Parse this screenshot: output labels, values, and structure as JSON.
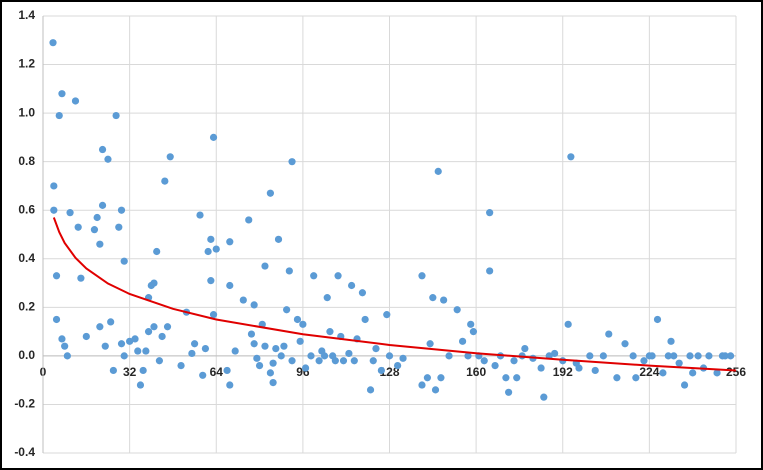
{
  "chart_data": {
    "type": "scatter",
    "xlim": [
      0,
      256
    ],
    "xticks": [
      0,
      32,
      64,
      96,
      128,
      160,
      192,
      224,
      256
    ],
    "ylim": [
      -0.4,
      1.4
    ],
    "yticks": [
      -0.4,
      -0.2,
      {
        "value": 0,
        "label": "0.0"
      },
      0.2,
      0.4,
      0.6,
      0.8,
      {
        "value": 1,
        "label": "1.0"
      },
      1.2,
      1.4
    ],
    "grid": true,
    "series": [
      {
        "type": "scatter",
        "color": "#5b9bd5",
        "x": [
          3.7,
          4,
          4,
          5,
          5,
          6,
          7,
          7,
          8,
          9,
          10,
          12,
          13,
          14,
          16,
          19,
          20,
          21,
          22,
          22,
          21,
          23,
          24,
          25,
          26,
          27,
          28,
          29,
          30,
          29,
          30,
          32,
          34,
          35,
          36,
          37,
          38,
          39,
          40,
          41,
          39,
          41,
          42,
          43,
          44,
          45,
          46,
          47,
          51,
          53,
          55,
          56,
          58,
          59,
          60,
          61,
          62,
          62,
          63,
          63,
          64,
          68,
          69,
          69,
          69,
          71,
          74,
          76,
          77,
          78,
          78,
          79,
          80,
          81,
          82,
          82,
          84,
          84,
          85,
          86,
          85,
          87,
          88,
          89,
          90,
          91,
          92,
          92,
          94,
          95,
          96,
          97,
          99,
          100,
          102,
          103,
          104,
          105,
          106,
          107,
          108,
          109,
          110,
          111,
          113,
          114,
          115,
          116,
          118,
          119,
          121,
          122,
          123,
          125,
          127,
          128,
          131,
          133,
          140,
          140,
          142,
          143,
          144,
          145,
          146,
          147,
          148,
          150,
          153,
          155,
          157,
          158,
          159,
          161,
          163,
          165,
          165,
          167,
          169,
          171,
          172,
          174,
          175,
          177,
          178,
          181,
          184,
          185,
          187,
          189,
          192,
          194,
          195,
          197,
          198,
          202,
          204,
          207,
          209,
          212,
          215,
          218,
          219,
          222,
          224,
          225,
          227,
          229,
          231,
          232,
          233,
          235,
          237,
          239,
          240,
          242,
          244,
          246,
          249,
          251,
          252,
          254
        ],
        "values": [
          1.29,
          0.7,
          0.6,
          0.33,
          0.15,
          0.99,
          1.08,
          0.07,
          0.04,
          0.0,
          0.59,
          1.05,
          0.53,
          0.32,
          0.08,
          0.52,
          0.57,
          0.46,
          0.85,
          0.62,
          0.12,
          0.04,
          0.81,
          0.14,
          -0.06,
          0.99,
          0.53,
          0.6,
          0.39,
          0.05,
          0.0,
          0.06,
          0.07,
          0.02,
          -0.12,
          -0.06,
          0.02,
          0.24,
          0.29,
          0.3,
          0.1,
          0.12,
          0.43,
          -0.02,
          0.08,
          0.72,
          0.12,
          0.82,
          -0.04,
          0.18,
          0.01,
          0.05,
          0.58,
          -0.08,
          0.03,
          0.43,
          0.48,
          0.31,
          0.9,
          0.17,
          0.44,
          -0.06,
          0.47,
          0.29,
          -0.12,
          0.02,
          0.23,
          0.56,
          0.09,
          0.21,
          0.05,
          -0.01,
          -0.04,
          0.13,
          0.37,
          0.04,
          -0.07,
          0.67,
          -0.03,
          0.03,
          -0.11,
          0.48,
          0.0,
          0.04,
          0.19,
          0.35,
          0.8,
          -0.02,
          0.15,
          0.06,
          0.13,
          -0.05,
          0.0,
          0.33,
          -0.02,
          0.02,
          0.0,
          0.24,
          0.1,
          0.0,
          -0.02,
          0.33,
          0.08,
          -0.02,
          0.01,
          0.29,
          -0.02,
          0.07,
          0.26,
          0.15,
          -0.14,
          -0.02,
          0.03,
          -0.06,
          0.17,
          0.0,
          -0.04,
          -0.01,
          0.33,
          -0.12,
          -0.09,
          0.05,
          0.24,
          -0.14,
          0.76,
          -0.09,
          0.23,
          0.0,
          0.19,
          0.06,
          0.0,
          0.13,
          0.1,
          0.0,
          -0.02,
          0.59,
          0.35,
          -0.04,
          0.0,
          -0.09,
          -0.15,
          -0.02,
          -0.09,
          0.0,
          0.03,
          -0.01,
          -0.05,
          -0.17,
          0.0,
          0.01,
          -0.02,
          0.13,
          0.82,
          -0.03,
          -0.05,
          0.0,
          -0.06,
          0.0,
          0.09,
          -0.09,
          0.05,
          0.0,
          -0.09,
          -0.02,
          0.0,
          0.0,
          0.15,
          -0.07,
          0.0,
          0.06,
          0.0,
          -0.03,
          -0.12,
          0.0,
          -0.07,
          0.0,
          -0.05,
          0.0,
          -0.07,
          0.0,
          0.0,
          0.0
        ]
      },
      {
        "type": "line",
        "color": "#e00000",
        "x": [
          4,
          6,
          8,
          12,
          16,
          24,
          32,
          48,
          64,
          96,
          128,
          160,
          192,
          224,
          256
        ],
        "values": [
          0.57,
          0.51,
          0.465,
          0.404,
          0.36,
          0.298,
          0.255,
          0.194,
          0.15,
          0.089,
          0.045,
          0.011,
          -0.016,
          -0.04,
          -0.06
        ]
      }
    ]
  }
}
